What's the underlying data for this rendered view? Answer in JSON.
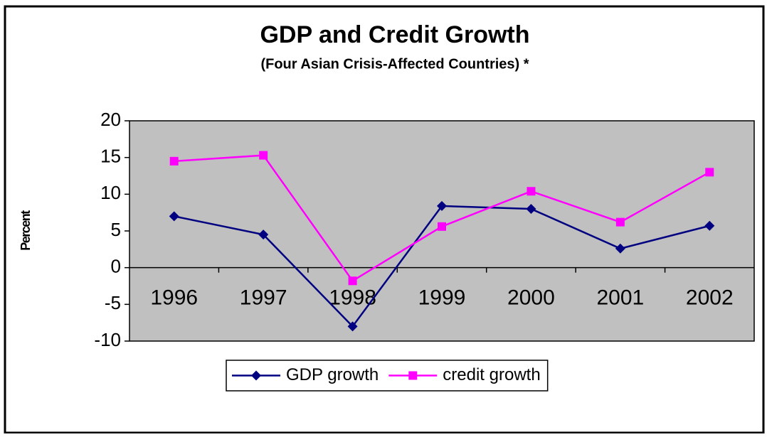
{
  "chart_data": {
    "type": "line",
    "title": "GDP and Credit Growth",
    "subtitle": "(Four Asian Crisis-Affected Countries) *",
    "y_label": "Percent",
    "categories": [
      "1996",
      "1997",
      "1998",
      "1999",
      "2000",
      "2001",
      "2002"
    ],
    "series": [
      {
        "name": "GDP growth",
        "color": "#000080",
        "marker": "diamond",
        "values": [
          7.0,
          4.5,
          -8.0,
          8.4,
          8.0,
          2.6,
          5.7
        ]
      },
      {
        "name": "credit growth",
        "color": "#ff00ff",
        "marker": "square",
        "values": [
          14.5,
          15.3,
          -1.8,
          5.6,
          10.4,
          6.2,
          13.0
        ]
      }
    ],
    "ylim": [
      -10,
      20
    ],
    "yticks": [
      -10,
      -5,
      0,
      5,
      10,
      15,
      20
    ],
    "grid": false,
    "plot_background": "#c0c0c0",
    "legend_position": "bottom"
  }
}
